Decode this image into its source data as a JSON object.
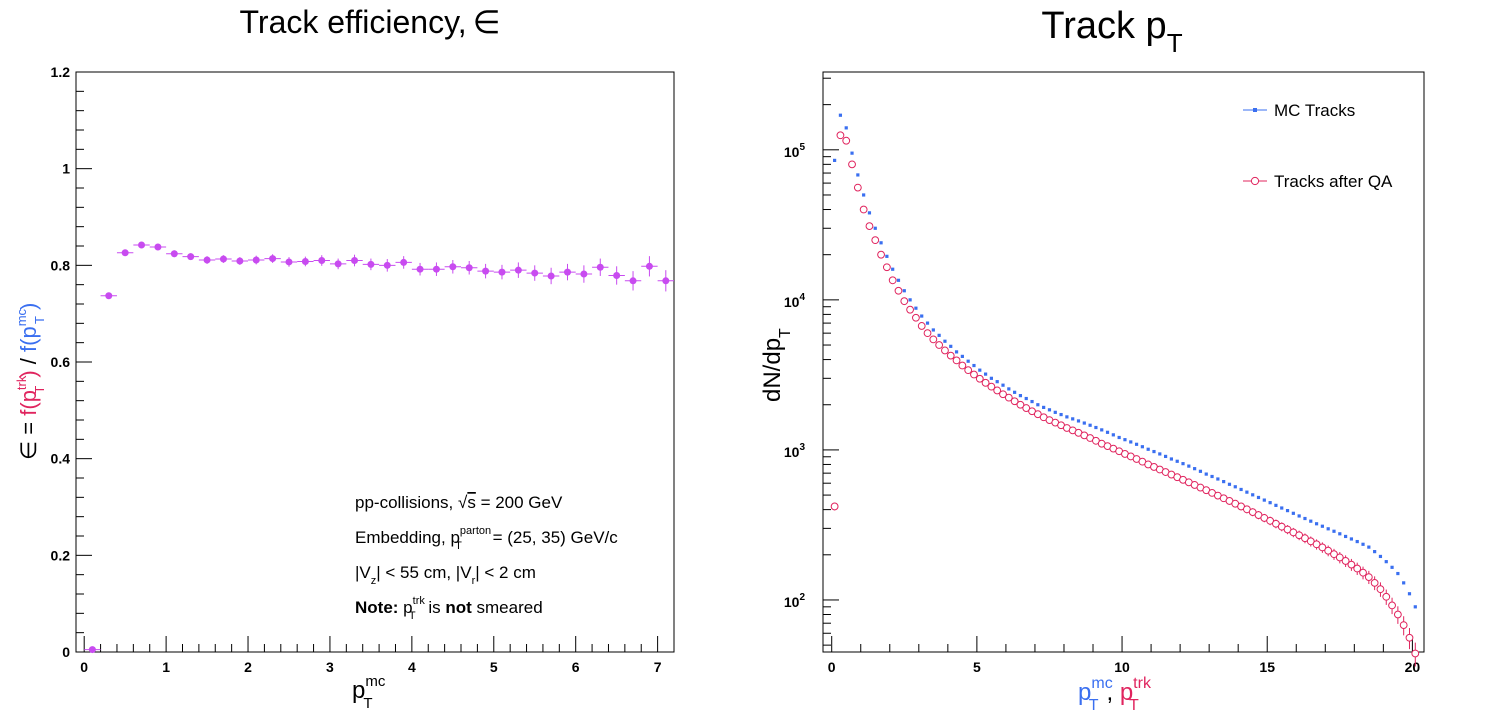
{
  "colors": {
    "efficiency_marker": "#c84bf0",
    "mc_tracks": "#3a6ff0",
    "reco_tracks": "#e0245e",
    "axis": "#000000"
  },
  "chart_data": [
    {
      "type": "scatter",
      "title": "Track efficiency,",
      "title_symbol": "∈",
      "xlabel": {
        "base": "p",
        "sub": "T",
        "sup": "mc"
      },
      "ylabel": {
        "prefix": "∈ = ",
        "num_f": "f(p",
        "num_sup": "trk",
        "num_sub": "T",
        "num_close": ")",
        "slash": " / ",
        "den_f": "f(p",
        "den_sup": "mc",
        "den_sub": "T",
        "den_close": ")"
      },
      "xlim": [
        -0.1,
        7.2
      ],
      "ylim": [
        0,
        1.2
      ],
      "xticks": [
        0,
        1,
        2,
        3,
        4,
        5,
        6,
        7
      ],
      "yticks": [
        0,
        0.2,
        0.4,
        0.6,
        0.8,
        1,
        1.2
      ],
      "ytick_labels": [
        "0",
        "0.2",
        "0.4",
        "0.6",
        "0.8",
        "1",
        "1.2"
      ],
      "series": [
        {
          "x": [
            0.1,
            0.3,
            0.5,
            0.7,
            0.9,
            1.1,
            1.3,
            1.5,
            1.7,
            1.9,
            2.1,
            2.3,
            2.5,
            2.7,
            2.9,
            3.1,
            3.3,
            3.5,
            3.7,
            3.9,
            4.1,
            4.3,
            4.5,
            4.7,
            4.9,
            5.1,
            5.3,
            5.5,
            5.7,
            5.9,
            6.1,
            6.3,
            6.5,
            6.7,
            6.9,
            7.1
          ],
          "y": [
            0.005,
            0.737,
            0.826,
            0.842,
            0.838,
            0.824,
            0.818,
            0.811,
            0.813,
            0.809,
            0.811,
            0.814,
            0.807,
            0.808,
            0.81,
            0.803,
            0.81,
            0.802,
            0.8,
            0.806,
            0.792,
            0.792,
            0.797,
            0.795,
            0.788,
            0.786,
            0.79,
            0.784,
            0.778,
            0.786,
            0.782,
            0.796,
            0.779,
            0.768,
            0.798,
            0.768
          ],
          "yerr": [
            0.004,
            0.006,
            0.006,
            0.006,
            0.006,
            0.007,
            0.007,
            0.008,
            0.008,
            0.008,
            0.009,
            0.009,
            0.01,
            0.01,
            0.011,
            0.011,
            0.012,
            0.012,
            0.013,
            0.013,
            0.013,
            0.014,
            0.014,
            0.014,
            0.015,
            0.015,
            0.016,
            0.016,
            0.017,
            0.017,
            0.018,
            0.018,
            0.019,
            0.02,
            0.021,
            0.022
          ]
        }
      ],
      "annotations": {
        "line1": {
          "pre": "pp-collisions, ",
          "sqrt_sym": "√",
          "sqrt_arg": "s",
          "post": " = 200 GeV"
        },
        "line2": {
          "pre": "Embedding, ",
          "base": "p",
          "sup": "parton",
          "sub": "T",
          "post": " = (25, 35) GeV/c"
        },
        "line3": {
          "a": "|V",
          "a_sub": "z",
          "b": "| < 55 cm, |V",
          "b_sub": "r",
          "c": "| < 2 cm"
        },
        "line4": {
          "note": "Note:",
          "base": " p",
          "sup": "trk",
          "sub": "T",
          "is": " is ",
          "not": "not",
          "end": " smeared"
        }
      }
    },
    {
      "type": "scatter",
      "title": "Track p",
      "title_sub": "T",
      "xlabel": {
        "a": "p",
        "a_sup": "mc",
        "a_sub": "T",
        "comma": ", ",
        "b": "p",
        "b_sup": "trk",
        "b_sub": "T"
      },
      "ylabel": {
        "base": "dN/dp",
        "sub": "T"
      },
      "yscale": "log",
      "xlim": [
        -0.3,
        20.4
      ],
      "ylim": [
        45,
        330000
      ],
      "xticks": [
        0,
        5,
        10,
        15,
        20
      ],
      "ytick_exponents": [
        2,
        3,
        4,
        5
      ],
      "ytick_base": "10",
      "legend": [
        {
          "name": "MC Tracks",
          "marker": "dot"
        },
        {
          "name": "Tracks after QA",
          "marker": "open-circle"
        }
      ],
      "legend_position": "top-right",
      "series": [
        {
          "name": "MC Tracks",
          "x": [
            0.1,
            0.3,
            0.5,
            0.7,
            0.9,
            1.1,
            1.3,
            1.5,
            1.7,
            1.9,
            2.1,
            2.3,
            2.5,
            2.7,
            2.9,
            3.1,
            3.3,
            3.5,
            3.7,
            3.9,
            4.1,
            4.3,
            4.5,
            4.7,
            4.9,
            5.1,
            5.3,
            5.5,
            5.7,
            5.9,
            6.1,
            6.3,
            6.5,
            6.7,
            6.9,
            7.1,
            7.3,
            7.5,
            7.7,
            7.9,
            8.1,
            8.3,
            8.5,
            8.7,
            8.9,
            9.1,
            9.3,
            9.5,
            9.7,
            9.9,
            10.1,
            10.3,
            10.5,
            10.7,
            10.9,
            11.1,
            11.3,
            11.5,
            11.7,
            11.9,
            12.1,
            12.3,
            12.5,
            12.7,
            12.9,
            13.1,
            13.3,
            13.5,
            13.7,
            13.9,
            14.1,
            14.3,
            14.5,
            14.7,
            14.9,
            15.1,
            15.3,
            15.5,
            15.7,
            15.9,
            16.1,
            16.3,
            16.5,
            16.7,
            16.9,
            17.1,
            17.3,
            17.5,
            17.7,
            17.9,
            18.1,
            18.3,
            18.5,
            18.7,
            18.9,
            19.1,
            19.3,
            19.5,
            19.7,
            19.9,
            20.1
          ],
          "y": [
            85000,
            170000,
            140000,
            95000,
            68000,
            50000,
            38000,
            30000,
            24000,
            19500,
            16000,
            13500,
            11500,
            10000,
            8800,
            7800,
            7000,
            6300,
            5800,
            5300,
            4900,
            4500,
            4200,
            3900,
            3650,
            3400,
            3200,
            3000,
            2850,
            2700,
            2550,
            2420,
            2300,
            2200,
            2100,
            2000,
            1920,
            1850,
            1780,
            1720,
            1660,
            1610,
            1560,
            1510,
            1460,
            1410,
            1360,
            1310,
            1260,
            1210,
            1170,
            1130,
            1090,
            1050,
            1010,
            975,
            940,
            905,
            870,
            840,
            810,
            780,
            750,
            720,
            690,
            665,
            640,
            615,
            590,
            568,
            545,
            523,
            502,
            482,
            463,
            445,
            427,
            410,
            394,
            378,
            363,
            349,
            335,
            322,
            310,
            298,
            287,
            276,
            265,
            255,
            245,
            235,
            225,
            210,
            195,
            180,
            165,
            150,
            130,
            110,
            90
          ]
        },
        {
          "name": "Tracks after QA",
          "x": [
            0.1,
            0.3,
            0.5,
            0.7,
            0.9,
            1.1,
            1.3,
            1.5,
            1.7,
            1.9,
            2.1,
            2.3,
            2.5,
            2.7,
            2.9,
            3.1,
            3.3,
            3.5,
            3.7,
            3.9,
            4.1,
            4.3,
            4.5,
            4.7,
            4.9,
            5.1,
            5.3,
            5.5,
            5.7,
            5.9,
            6.1,
            6.3,
            6.5,
            6.7,
            6.9,
            7.1,
            7.3,
            7.5,
            7.7,
            7.9,
            8.1,
            8.3,
            8.5,
            8.7,
            8.9,
            9.1,
            9.3,
            9.5,
            9.7,
            9.9,
            10.1,
            10.3,
            10.5,
            10.7,
            10.9,
            11.1,
            11.3,
            11.5,
            11.7,
            11.9,
            12.1,
            12.3,
            12.5,
            12.7,
            12.9,
            13.1,
            13.3,
            13.5,
            13.7,
            13.9,
            14.1,
            14.3,
            14.5,
            14.7,
            14.9,
            15.1,
            15.3,
            15.5,
            15.7,
            15.9,
            16.1,
            16.3,
            16.5,
            16.7,
            16.9,
            17.1,
            17.3,
            17.5,
            17.7,
            17.9,
            18.1,
            18.3,
            18.5,
            18.7,
            18.9,
            19.1,
            19.3,
            19.5,
            19.7,
            19.9,
            20.1
          ],
          "y": [
            420,
            125000,
            115000,
            80000,
            56000,
            40000,
            31000,
            25000,
            20000,
            16500,
            13500,
            11500,
            9800,
            8600,
            7600,
            6700,
            6000,
            5450,
            5000,
            4600,
            4250,
            3950,
            3650,
            3400,
            3180,
            2980,
            2800,
            2640,
            2490,
            2350,
            2230,
            2110,
            2000,
            1900,
            1810,
            1730,
            1650,
            1580,
            1520,
            1460,
            1400,
            1350,
            1300,
            1250,
            1200,
            1150,
            1100,
            1060,
            1020,
            980,
            940,
            905,
            870,
            835,
            800,
            770,
            740,
            712,
            685,
            658,
            632,
            608,
            584,
            561,
            539,
            517,
            496,
            476,
            457,
            438,
            420,
            402,
            385,
            368,
            352,
            337,
            322,
            308,
            295,
            282,
            270,
            258,
            246,
            235,
            224,
            213,
            202,
            192,
            182,
            172,
            162,
            152,
            142,
            130,
            118,
            105,
            92,
            80,
            68,
            56,
            44
          ]
        }
      ]
    }
  ]
}
